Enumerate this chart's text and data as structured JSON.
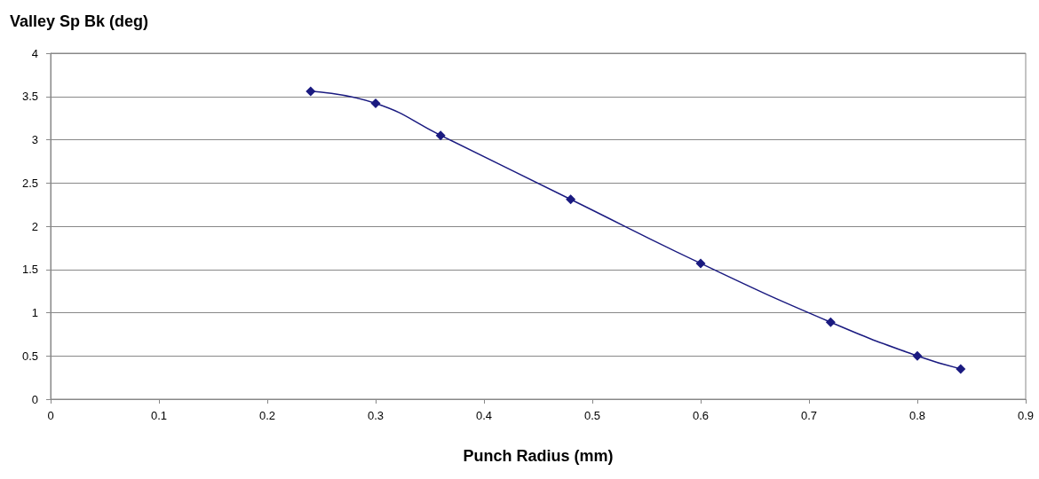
{
  "chart_data": {
    "type": "line",
    "title": "Valley Sp Bk (deg)",
    "xlabel": "Punch Radius (mm)",
    "x": [
      0.24,
      0.3,
      0.36,
      0.48,
      0.6,
      0.72,
      0.8,
      0.84
    ],
    "series": [
      {
        "color": "#1a1a80",
        "values": [
          3.56,
          3.42,
          3.05,
          2.31,
          1.57,
          0.89,
          0.5,
          0.35
        ]
      }
    ],
    "xlim": [
      0,
      0.9
    ],
    "xticks": [
      0,
      0.1,
      0.2,
      0.3,
      0.4,
      0.5,
      0.6,
      0.7,
      0.8,
      0.9
    ],
    "ylim": [
      0,
      4
    ],
    "yticks": [
      0,
      0.5,
      1,
      1.5,
      2,
      2.5,
      3,
      3.5,
      4
    ],
    "grid": "y",
    "marker": "diamond",
    "line_style": "solid"
  }
}
